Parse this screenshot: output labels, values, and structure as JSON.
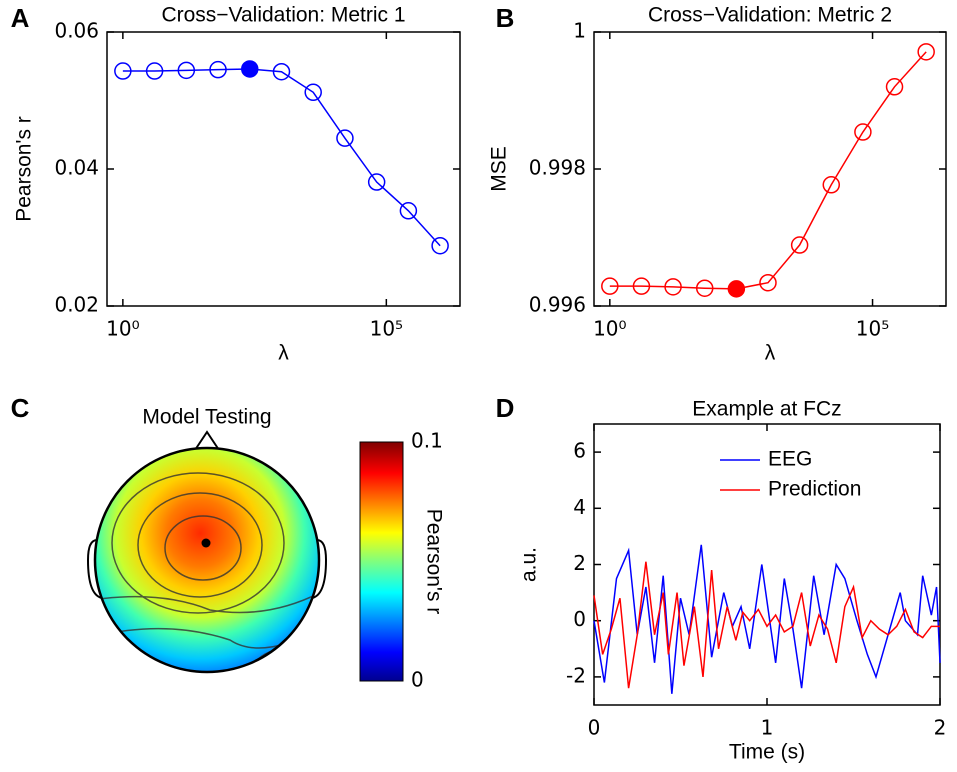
{
  "chart_data": [
    {
      "type": "line",
      "label": "A",
      "title": "Cross−Validation: Metric 1",
      "xlabel": "λ",
      "ylabel": "Pearson's r",
      "xscale": "log",
      "x": [
        1,
        4,
        16,
        64,
        256,
        1024,
        4096,
        16384,
        65536,
        262144,
        1048576
      ],
      "series": [
        {
          "color": "#0000ff",
          "values": [
            0.0543,
            0.0543,
            0.0544,
            0.0545,
            0.0546,
            0.0542,
            0.0512,
            0.0445,
            0.0381,
            0.0339,
            0.0288
          ]
        }
      ],
      "marker": "circle",
      "highlight_index": 4,
      "xlim": [
        0.5,
        2500000
      ],
      "xticks": [
        {
          "value": 1,
          "label": "10⁰"
        },
        {
          "value": 100000,
          "label": "10⁵"
        }
      ],
      "ylim": [
        0.02,
        0.06
      ],
      "yticks": [
        0.02,
        0.04,
        0.06
      ]
    },
    {
      "type": "line",
      "label": "B",
      "title": "Cross−Validation: Metric 2",
      "xlabel": "λ",
      "ylabel": "MSE",
      "xscale": "log",
      "x": [
        1,
        4,
        16,
        64,
        256,
        1024,
        4096,
        16384,
        65536,
        262144,
        1048576
      ],
      "series": [
        {
          "color": "#ff0000",
          "values": [
            0.99629,
            0.99629,
            0.99628,
            0.99626,
            0.99625,
            0.99634,
            0.99689,
            0.99777,
            0.99854,
            0.9992,
            0.99971
          ]
        }
      ],
      "marker": "circle",
      "highlight_index": 4,
      "xlim": [
        0.5,
        2500000
      ],
      "xticks": [
        {
          "value": 1,
          "label": "10⁰"
        },
        {
          "value": 100000,
          "label": "10⁵"
        }
      ],
      "ylim": [
        0.996,
        1
      ],
      "yticks": [
        0.996,
        0.998,
        1
      ]
    },
    {
      "type": "topoplot",
      "label": "C",
      "title": "Model Testing",
      "colorbar_label": "Pearson's r",
      "clim": [
        0,
        0.1
      ],
      "cticks": [
        0,
        0.1
      ]
    },
    {
      "type": "line",
      "label": "D",
      "title": "Example at FCz",
      "xlabel": "Time (s)",
      "ylabel": "a.u.",
      "xlim": [
        0,
        2
      ],
      "xticks": [
        0,
        1,
        2
      ],
      "ylim": [
        -3,
        7
      ],
      "yticks": [
        -2,
        0,
        2,
        4,
        6
      ],
      "legend": "upper right",
      "series": [
        {
          "name": "EEG",
          "color": "#0000ff",
          "x": [
            0,
            0.06,
            0.13,
            0.2,
            0.25,
            0.3,
            0.35,
            0.4,
            0.45,
            0.5,
            0.55,
            0.62,
            0.68,
            0.75,
            0.8,
            0.85,
            0.9,
            0.97,
            1.05,
            1.1,
            1.15,
            1.2,
            1.27,
            1.33,
            1.4,
            1.45,
            1.52,
            1.58,
            1.63,
            1.7,
            1.77,
            1.8,
            1.87,
            1.9,
            1.95,
            1.98,
            2
          ],
          "values": [
            0,
            -2.2,
            1.5,
            2.5,
            -0.5,
            1.2,
            -1.5,
            1.6,
            -2.6,
            0.8,
            -0.5,
            2.7,
            -1.3,
            1,
            -0.2,
            0.5,
            -1,
            2,
            -1.5,
            1.5,
            -0.3,
            -2.4,
            1.6,
            -0.5,
            2,
            1.5,
            0,
            -1.2,
            -2,
            -0.5,
            1,
            0,
            -0.5,
            1.6,
            0.2,
            1.2,
            -1.5
          ]
        },
        {
          "name": "Prediction",
          "color": "#ff0000",
          "x": [
            0,
            0.05,
            0.1,
            0.15,
            0.2,
            0.25,
            0.3,
            0.35,
            0.4,
            0.43,
            0.48,
            0.52,
            0.58,
            0.63,
            0.68,
            0.72,
            0.77,
            0.82,
            0.86,
            0.9,
            0.95,
            1,
            1.05,
            1.1,
            1.15,
            1.2,
            1.25,
            1.3,
            1.35,
            1.4,
            1.45,
            1.5,
            1.55,
            1.6,
            1.65,
            1.7,
            1.75,
            1.8,
            1.85,
            1.9,
            1.95,
            2
          ],
          "values": [
            0.9,
            -1.2,
            -0.3,
            0.8,
            -2.4,
            -0.5,
            2.1,
            -0.5,
            1,
            -1.2,
            1,
            -1.6,
            0.5,
            -2,
            1.8,
            -1,
            0.5,
            -0.7,
            0.3,
            0,
            0.4,
            -0.2,
            0.2,
            -0.4,
            -0.2,
            1,
            -0.9,
            0.2,
            -0.3,
            -1.5,
            0.5,
            1.2,
            -0.6,
            0,
            -0.3,
            -0.5,
            -0.2,
            0.4,
            -0.4,
            -0.6,
            -0.2,
            -0.2
          ]
        }
      ]
    }
  ]
}
